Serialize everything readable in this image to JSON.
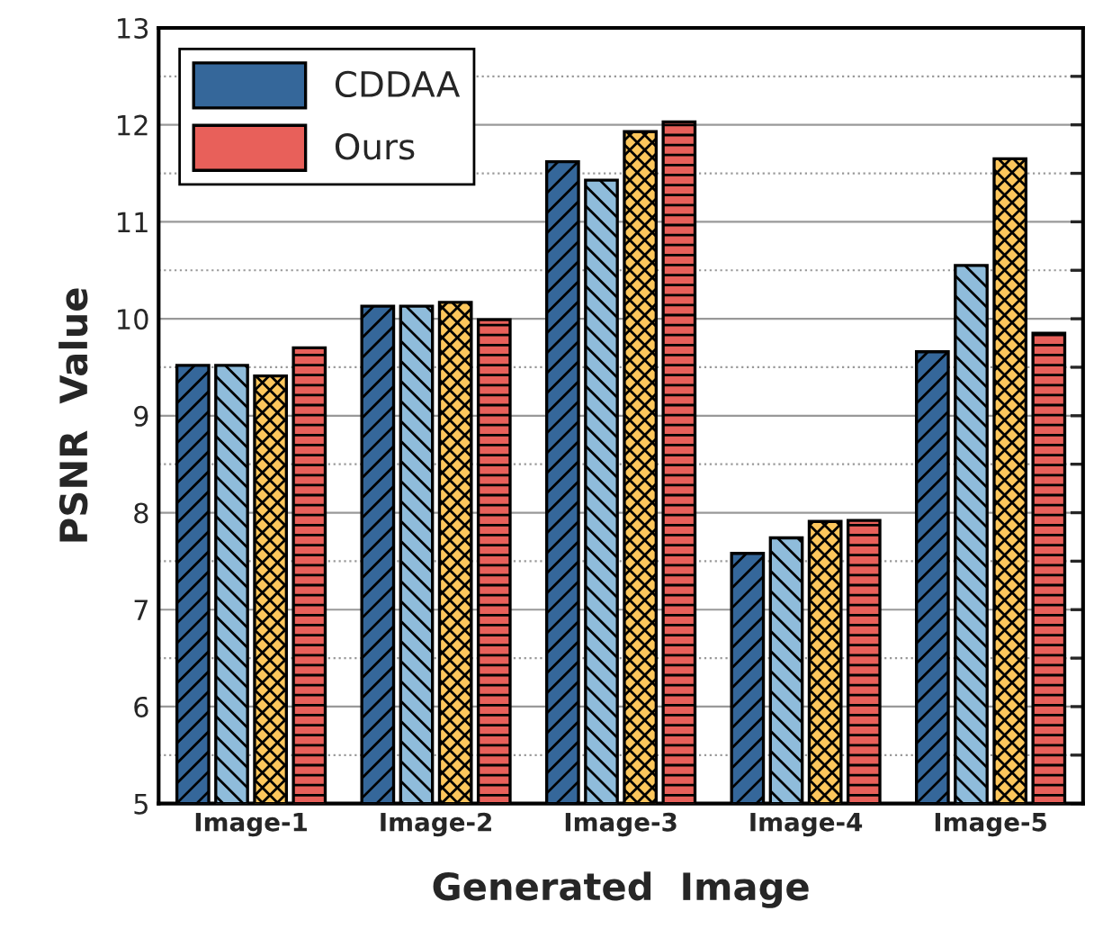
{
  "chart_data": {
    "type": "bar",
    "xlabel": "Generated  Image",
    "ylabel": "PSNR  Value",
    "categories": [
      "Image-1",
      "Image-2",
      "Image-3",
      "Image-4",
      "Image-5"
    ],
    "series": [
      {
        "name": "CDDAA",
        "color": "#35679a",
        "values": [
          9.52,
          10.13,
          11.62,
          7.58,
          9.66
        ]
      },
      {
        "color": "#8fbcdb",
        "values": [
          9.52,
          10.13,
          11.43,
          7.74,
          10.55
        ]
      },
      {
        "color": "#fcc65c",
        "values": [
          9.41,
          10.17,
          11.93,
          7.91,
          11.65
        ]
      },
      {
        "name": "Ours",
        "color": "#e8605a",
        "values": [
          9.7,
          9.99,
          12.03,
          7.92,
          9.85
        ]
      }
    ],
    "ylim": [
      5,
      13
    ],
    "yticks": [
      5,
      {
        "value": 5.5,
        "label": null
      },
      6,
      {
        "value": 6.5,
        "label": null
      },
      7,
      {
        "value": 7.5,
        "label": null
      },
      8,
      {
        "value": 8.5,
        "label": null
      },
      9,
      {
        "value": 9.5,
        "label": null
      },
      10,
      {
        "value": 10.5,
        "label": null
      },
      11,
      {
        "value": 11.5,
        "label": null
      },
      12,
      {
        "value": 12.5,
        "label": null
      },
      13
    ],
    "grid": "y",
    "legend": "top left"
  }
}
